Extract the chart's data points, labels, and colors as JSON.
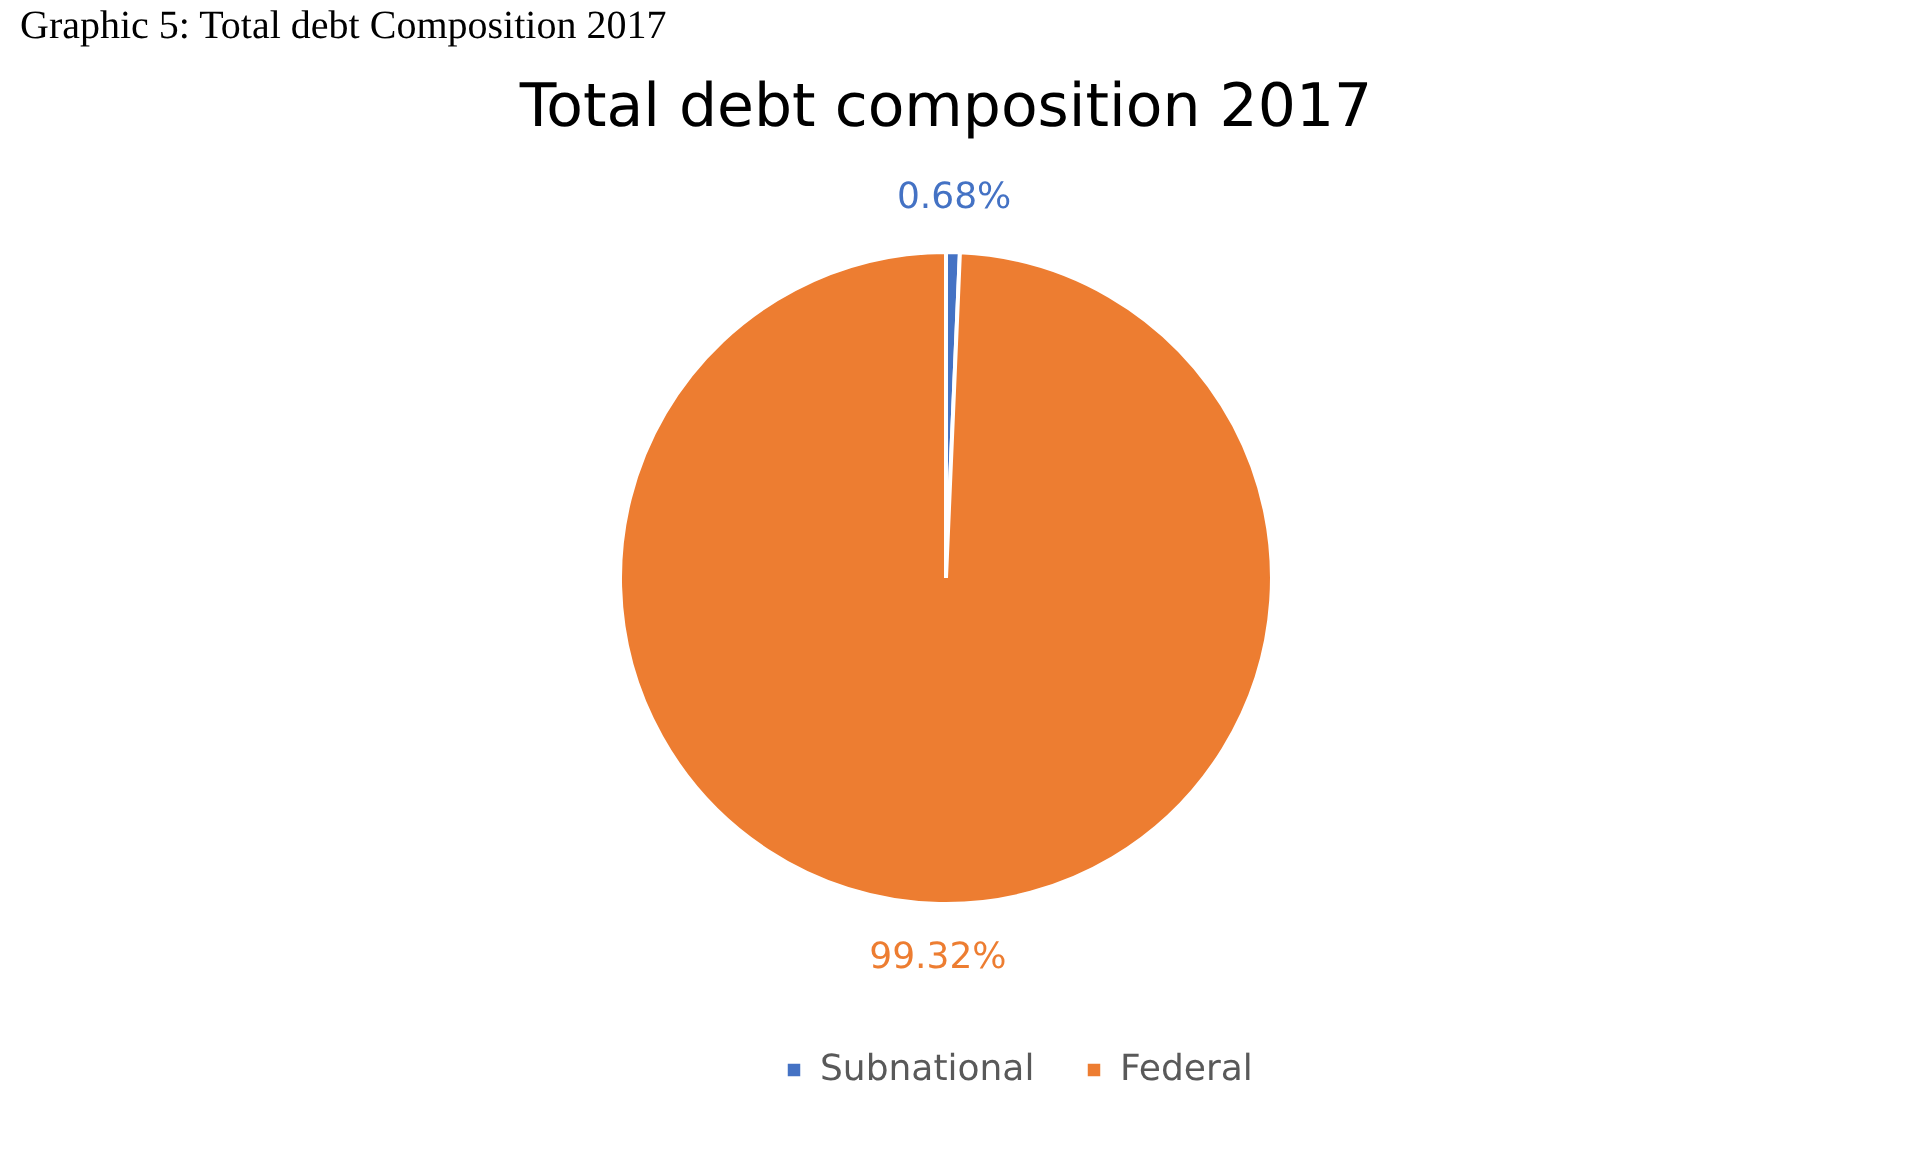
{
  "chart_data": {
    "type": "pie",
    "title": "Total debt composition 2017",
    "annotations": [
      "Graphic 5: Total debt Composition 2017"
    ],
    "categories": [
      "Subnational",
      "Federal"
    ],
    "values": [
      0.68,
      99.32
    ],
    "value_labels": [
      "0.68%",
      "99.32%"
    ],
    "colors": [
      "#4472c4",
      "#ed7d31"
    ],
    "legend": "bottom"
  }
}
